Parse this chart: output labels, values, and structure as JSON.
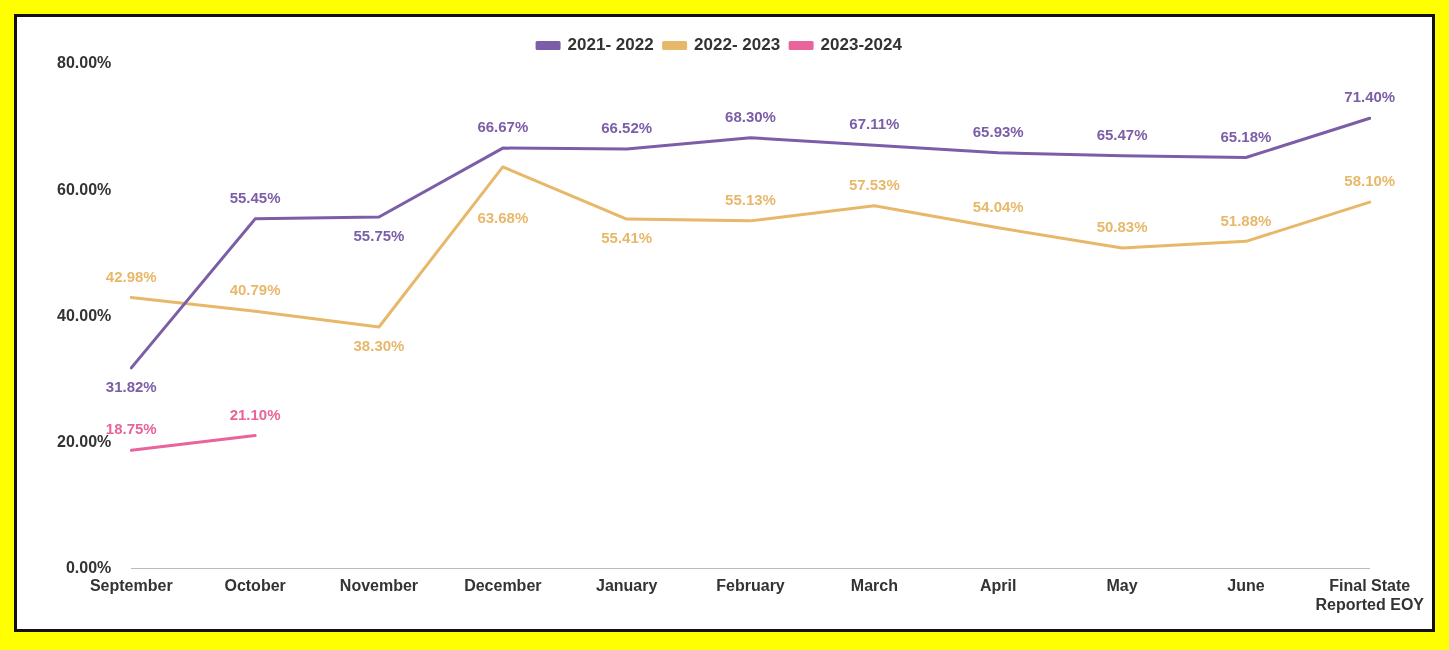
{
  "chart_data": {
    "type": "line",
    "categories": [
      "September",
      "October",
      "November",
      "December",
      "January",
      "February",
      "March",
      "April",
      "May",
      "June",
      "Final State Reported EOY"
    ],
    "series": [
      {
        "name": "2021- 2022",
        "color": "#7b5ea7",
        "values": [
          31.82,
          55.45,
          55.75,
          66.67,
          66.52,
          68.3,
          67.11,
          65.93,
          65.47,
          65.18,
          71.4
        ],
        "value_labels": [
          "31.82%",
          "55.45%",
          "55.75%",
          "66.67%",
          "66.52%",
          "68.30%",
          "67.11%",
          "65.93%",
          "65.47%",
          "65.18%",
          "71.40%"
        ]
      },
      {
        "name": "2022- 2023",
        "color": "#e8b86a",
        "values": [
          42.98,
          40.79,
          38.3,
          63.68,
          55.41,
          55.13,
          57.53,
          54.04,
          50.83,
          51.88,
          58.1
        ],
        "value_labels": [
          "42.98%",
          "40.79%",
          "38.30%",
          "63.68%",
          "55.41%",
          "55.13%",
          "57.53%",
          "54.04%",
          "50.83%",
          "51.88%",
          "58.10%"
        ]
      },
      {
        "name": "2023-2024",
        "color": "#e8649a",
        "values": [
          18.75,
          21.1,
          null,
          null,
          null,
          null,
          null,
          null,
          null,
          null,
          null
        ],
        "value_labels": [
          "18.75%",
          "21.10%",
          null,
          null,
          null,
          null,
          null,
          null,
          null,
          null,
          null
        ]
      }
    ],
    "ylim": [
      0,
      80
    ],
    "yticks": [
      {
        "value": 0,
        "label": "0.00%"
      },
      {
        "value": 20,
        "label": "20.00%"
      },
      {
        "value": 40,
        "label": "40.00%"
      },
      {
        "value": 60,
        "label": "60.00%"
      },
      {
        "value": 80,
        "label": "80.00%"
      }
    ],
    "grid": false,
    "legend": "top",
    "marker": "none",
    "line_style": "solid"
  }
}
